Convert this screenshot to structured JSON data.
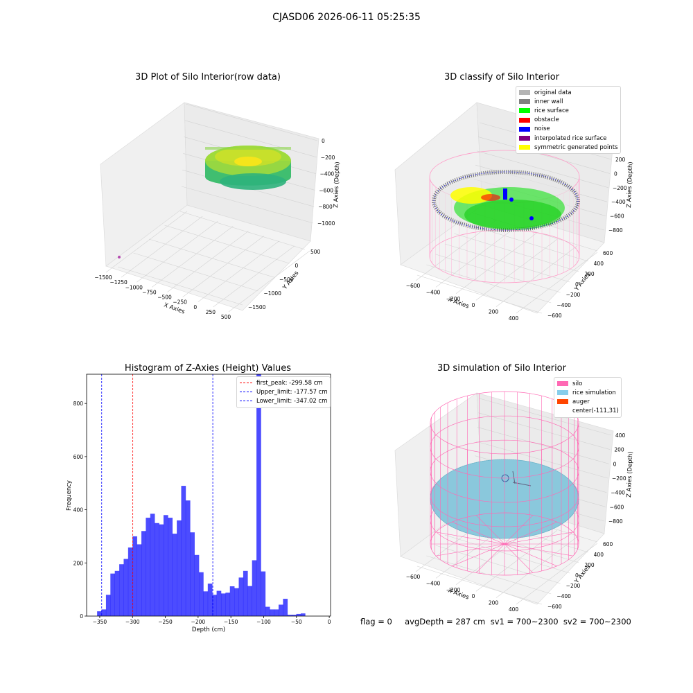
{
  "figure": {
    "suptitle": "CJASD06 2026-06-11 05:25:35",
    "footer": "flag = 0     avgDepth = 287 cm  sv1 = 700~2300  sv2 = 700~2300"
  },
  "panels": {
    "raw": {
      "title": "3D Plot of Silo Interior(row data)",
      "xlabel": "X Axies",
      "ylabel": "Y Axies",
      "zlabel": "Z Axies (Depth)",
      "xticks": [
        "−1500",
        "−1250",
        "−1000",
        "−750",
        "−500",
        "−250",
        "0",
        "250",
        "500"
      ],
      "yticks": [
        "500",
        "0",
        "−500",
        "−1000",
        "−1500"
      ],
      "zticks": [
        "0",
        "−200",
        "−400",
        "−600",
        "−800",
        "−1000"
      ],
      "colormap": [
        "#3dbd6e",
        "#7fd34e",
        "#c8df2c",
        "#f1e51d"
      ]
    },
    "classify": {
      "title": "3D classify of Silo Interior",
      "xlabel": "X Axies",
      "ylabel": "Y Axies",
      "zlabel": "Z Axies (Depth)",
      "xticks": [
        "−600",
        "−400",
        "−200",
        "0",
        "200",
        "400"
      ],
      "yticks": [
        "600",
        "400",
        "200",
        "0",
        "−200",
        "−400",
        "−600"
      ],
      "zticks": [
        "200",
        "0",
        "−200",
        "−400",
        "−600",
        "−800"
      ],
      "zticks_top_partial": "00",
      "legend": [
        {
          "label": "original data",
          "color": "#b4b4b4"
        },
        {
          "label": "inner wall",
          "color": "#808080"
        },
        {
          "label": "rice surface",
          "color": "#00ff00"
        },
        {
          "label": "obstacle",
          "color": "#ff0000"
        },
        {
          "label": "noise",
          "color": "#0000ff"
        },
        {
          "label": "interpolated rice surface",
          "color": "#800080"
        },
        {
          "label": "symmetric generated points",
          "color": "#ffff00"
        }
      ]
    },
    "histogram": {
      "title": "Histogram of Z-Axies (Height) Values",
      "xlabel": "Depth (cm)",
      "ylabel": "Frequency",
      "legend": [
        {
          "label": "first_peak: -299.58 cm",
          "color": "#ff0000"
        },
        {
          "label": "Upper_limit: -177.57 cm",
          "color": "#0000ff"
        },
        {
          "label": "Lower_limit: -347.02 cm",
          "color": "#0000ff"
        }
      ]
    },
    "simulation": {
      "title": "3D simulation of Silo Interior",
      "xlabel": "X Axies",
      "ylabel": "Y Axies",
      "zlabel": "Z Axies (Depth)",
      "xticks": [
        "−600",
        "−400",
        "−200",
        "0",
        "200",
        "400"
      ],
      "yticks": [
        "600",
        "400",
        "200",
        "0",
        "−200",
        "−400",
        "−600"
      ],
      "zticks": [
        "400",
        "200",
        "0",
        "−200",
        "−400",
        "−600",
        "−800"
      ],
      "legend": [
        {
          "label": "silo",
          "color": "#ff69b4"
        },
        {
          "label": "rice simulation",
          "color": "#87ceeb"
        },
        {
          "label": "auger",
          "color": "#ff4500"
        },
        {
          "label": "center(-111,31)",
          "color": ""
        }
      ]
    }
  },
  "chart_data": {
    "type": "bar",
    "title": "Histogram of Z-Axies (Height) Values",
    "xlabel": "Depth (cm)",
    "ylabel": "Frequency",
    "xlim": [
      -370,
      2
    ],
    "ylim": [
      0,
      910
    ],
    "xticks": [
      -350,
      -300,
      -250,
      -200,
      -150,
      -100,
      -50,
      0
    ],
    "xtick_labels": [
      "−350",
      "−300",
      "−250",
      "−200",
      "−150",
      "−100",
      "−50",
      "0"
    ],
    "yticks": [
      0,
      200,
      400,
      600,
      800
    ],
    "bar_color": "#0000ff",
    "bin_start": -354.0,
    "bin_width": 6.75,
    "values": [
      18,
      25,
      80,
      160,
      170,
      195,
      215,
      258,
      300,
      270,
      320,
      370,
      385,
      350,
      345,
      380,
      370,
      310,
      360,
      490,
      435,
      315,
      230,
      165,
      93,
      122,
      80,
      95,
      85,
      88,
      112,
      105,
      145,
      170,
      113,
      210,
      910,
      168,
      35,
      25,
      25,
      43,
      65,
      5,
      5,
      8,
      10
    ],
    "vlines": [
      {
        "x": -299.58,
        "color": "#ff0000",
        "label": "first_peak: -299.58 cm"
      },
      {
        "x": -177.57,
        "color": "#0000ff",
        "label": "Upper_limit: -177.57 cm"
      },
      {
        "x": -347.02,
        "color": "#0000ff",
        "label": "Lower_limit: -347.02 cm"
      }
    ]
  }
}
